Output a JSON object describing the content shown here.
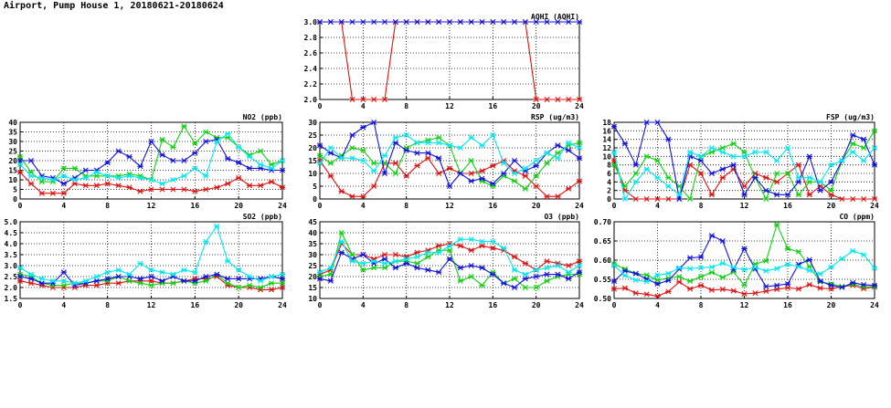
{
  "page": {
    "title": "Airport, Pump House 1, 20180621-20180624"
  },
  "colors": {
    "series1": "#e01010",
    "series2": "#10d010",
    "series3": "#1010e0",
    "series4": "#00e8f0",
    "grid": "#000000"
  },
  "chart_data": [
    {
      "id": "aqhi",
      "type": "line",
      "title": "AQHI (AQHI)",
      "xlim": [
        0,
        24
      ],
      "xticks": [
        0,
        4,
        8,
        12,
        16,
        20,
        24
      ],
      "ylim": [
        2.0,
        3.0
      ],
      "yticks": [
        "2.0",
        "2.2",
        "2.4",
        "2.6",
        "2.8",
        "3.0"
      ],
      "x": [
        0,
        1,
        2,
        3,
        4,
        5,
        6,
        7,
        8,
        9,
        10,
        11,
        12,
        13,
        14,
        15,
        16,
        17,
        18,
        19,
        20,
        21,
        22,
        23,
        24
      ],
      "series": [
        {
          "color": "series1",
          "values": [
            3,
            3,
            3,
            2,
            2,
            2,
            2,
            3,
            3,
            3,
            3,
            3,
            3,
            3,
            3,
            3,
            3,
            3,
            3,
            3,
            2,
            2,
            2,
            2,
            2
          ]
        },
        {
          "color": "series3",
          "values": [
            3,
            3,
            3,
            3,
            3,
            3,
            3,
            3,
            3,
            3,
            3,
            3,
            3,
            3,
            3,
            3,
            3,
            3,
            3,
            3,
            3,
            3,
            3,
            3,
            3
          ]
        }
      ]
    },
    {
      "id": "no2",
      "type": "line",
      "title": "NO2 (ppb)",
      "xlim": [
        0,
        24
      ],
      "xticks": [
        0,
        4,
        8,
        12,
        16,
        20,
        24
      ],
      "ylim": [
        0,
        40
      ],
      "yticks": [
        "0",
        "5",
        "10",
        "15",
        "20",
        "25",
        "30",
        "35",
        "40"
      ],
      "x": [
        0,
        1,
        2,
        3,
        4,
        5,
        6,
        7,
        8,
        9,
        10,
        11,
        12,
        13,
        14,
        15,
        16,
        17,
        18,
        19,
        20,
        21,
        22,
        23,
        24
      ],
      "series": [
        {
          "color": "series1",
          "values": [
            14,
            8,
            3,
            3,
            3,
            8,
            7,
            7,
            8,
            7,
            6,
            4,
            5,
            5,
            5,
            5,
            4,
            5,
            6,
            8,
            11,
            7,
            7,
            9,
            6
          ]
        },
        {
          "color": "series2",
          "values": [
            22,
            14,
            9,
            9,
            16,
            16,
            12,
            12,
            12,
            12,
            13,
            12,
            10,
            31,
            27,
            38,
            29,
            35,
            32,
            32,
            27,
            23,
            25,
            18,
            20
          ]
        },
        {
          "color": "series3",
          "values": [
            20,
            20,
            12,
            11,
            8,
            11,
            15,
            15,
            19,
            25,
            22,
            17,
            30,
            23,
            20,
            20,
            24,
            30,
            31,
            21,
            19,
            16,
            16,
            15,
            15
          ]
        },
        {
          "color": "series4",
          "values": [
            18,
            12,
            11,
            10,
            12,
            10,
            11,
            14,
            12,
            11,
            12,
            11,
            10,
            8,
            10,
            12,
            16,
            12,
            30,
            34,
            27,
            22,
            18,
            16,
            20
          ]
        }
      ]
    },
    {
      "id": "rsp",
      "type": "line",
      "title": "RSP (ug/m3)",
      "xlim": [
        0,
        24
      ],
      "xticks": [
        0,
        4,
        8,
        12,
        16,
        20,
        24
      ],
      "ylim": [
        0,
        30
      ],
      "yticks": [
        "0",
        "5",
        "10",
        "15",
        "20",
        "25",
        "30"
      ],
      "x": [
        0,
        1,
        2,
        3,
        4,
        5,
        6,
        7,
        8,
        9,
        10,
        11,
        12,
        13,
        14,
        15,
        16,
        17,
        18,
        19,
        20,
        21,
        22,
        23,
        24
      ],
      "series": [
        {
          "color": "series1",
          "values": [
            15,
            9,
            3,
            1,
            1,
            5,
            14,
            14,
            9,
            13,
            16,
            10,
            12,
            10,
            10,
            11,
            13,
            15,
            11,
            9,
            5,
            1,
            1,
            4,
            7
          ]
        },
        {
          "color": "series2",
          "values": [
            17,
            14,
            17,
            20,
            19,
            14,
            14,
            10,
            20,
            22,
            23,
            24,
            21,
            10,
            15,
            7,
            5,
            9,
            7,
            4,
            9,
            14,
            18,
            21,
            22
          ]
        },
        {
          "color": "series3",
          "values": [
            21,
            18,
            16,
            25,
            28,
            30,
            10,
            22,
            19,
            18,
            18,
            16,
            5,
            10,
            7,
            8,
            6,
            10,
            15,
            11,
            13,
            18,
            21,
            19,
            16
          ]
        },
        {
          "color": "series4",
          "values": [
            14,
            20,
            16,
            16,
            15,
            11,
            17,
            24,
            25,
            22,
            22,
            22,
            21,
            20,
            24,
            21,
            25,
            14,
            10,
            12,
            15,
            18,
            16,
            22,
            20
          ]
        }
      ]
    },
    {
      "id": "fsp",
      "type": "line",
      "title": "FSP (ug/m3)",
      "xlim": [
        0,
        24
      ],
      "xticks": [
        0,
        4,
        8,
        12,
        16,
        20,
        24
      ],
      "ylim": [
        0,
        18
      ],
      "yticks": [
        "0",
        "2",
        "4",
        "6",
        "8",
        "10",
        "12",
        "14",
        "16",
        "18"
      ],
      "x": [
        0,
        1,
        2,
        3,
        4,
        5,
        6,
        7,
        8,
        9,
        10,
        11,
        12,
        13,
        14,
        15,
        16,
        17,
        18,
        19,
        20,
        21,
        22,
        23,
        24
      ],
      "series": [
        {
          "color": "series1",
          "values": [
            9,
            2,
            0,
            0,
            0,
            0,
            0,
            8,
            6,
            1,
            5,
            7,
            3,
            6,
            5,
            4,
            6,
            8,
            1,
            3,
            1,
            0,
            0,
            0,
            0
          ]
        },
        {
          "color": "series2",
          "values": [
            8,
            3,
            6,
            10,
            9,
            5,
            3,
            0,
            10,
            11,
            12,
            13,
            11,
            5,
            0,
            6,
            6,
            1,
            4,
            4,
            2,
            9,
            13,
            12,
            16
          ]
        },
        {
          "color": "series3",
          "values": [
            17,
            13,
            8,
            18,
            18,
            14,
            0,
            10,
            9,
            6,
            7,
            8,
            1,
            5,
            2,
            1,
            1,
            4,
            10,
            2,
            4,
            9,
            15,
            14,
            8
          ]
        },
        {
          "color": "series4",
          "values": [
            11,
            0,
            4,
            7,
            5,
            3,
            1,
            11,
            10,
            12,
            11,
            10,
            10,
            11,
            11,
            9,
            12,
            5,
            5,
            4,
            8,
            9,
            11,
            9,
            12
          ]
        }
      ]
    },
    {
      "id": "so2",
      "type": "line",
      "title": "SO2 (ppb)",
      "xlim": [
        0,
        24
      ],
      "xticks": [
        0,
        4,
        8,
        12,
        16,
        20,
        24
      ],
      "ylim": [
        1.5,
        5.0
      ],
      "yticks": [
        "1.5",
        "2.0",
        "2.5",
        "3.0",
        "3.5",
        "4.0",
        "4.5",
        "5.0"
      ],
      "x": [
        0,
        1,
        2,
        3,
        4,
        5,
        6,
        7,
        8,
        9,
        10,
        11,
        12,
        13,
        14,
        15,
        16,
        17,
        18,
        19,
        20,
        21,
        22,
        23,
        24
      ],
      "series": [
        {
          "color": "series1",
          "values": [
            2.3,
            2.2,
            2.1,
            2.0,
            2.0,
            2.0,
            2.1,
            2.1,
            2.2,
            2.2,
            2.3,
            2.3,
            2.3,
            2.2,
            2.2,
            2.3,
            2.4,
            2.4,
            2.5,
            2.1,
            2.0,
            2.0,
            1.9,
            1.9,
            2.0
          ]
        },
        {
          "color": "series2",
          "values": [
            2.6,
            2.5,
            2.2,
            2.1,
            2.1,
            2.2,
            2.2,
            2.3,
            2.3,
            2.5,
            2.3,
            2.2,
            2.1,
            2.2,
            2.2,
            2.3,
            2.2,
            2.3,
            2.6,
            2.2,
            2.0,
            2.1,
            2.0,
            2.2,
            2.2
          ]
        },
        {
          "color": "series3",
          "values": [
            2.5,
            2.4,
            2.2,
            2.2,
            2.7,
            2.1,
            2.2,
            2.3,
            2.4,
            2.5,
            2.5,
            2.4,
            2.5,
            2.3,
            2.5,
            2.3,
            2.3,
            2.5,
            2.6,
            2.4,
            2.4,
            2.4,
            2.4,
            2.5,
            2.4
          ]
        },
        {
          "color": "series4",
          "values": [
            2.9,
            2.6,
            2.4,
            2.3,
            2.3,
            2.2,
            2.3,
            2.5,
            2.7,
            2.8,
            2.6,
            3.1,
            2.8,
            2.7,
            2.6,
            2.8,
            2.7,
            4.1,
            4.8,
            3.2,
            2.8,
            2.5,
            2.3,
            2.5,
            2.6
          ]
        }
      ]
    },
    {
      "id": "o3",
      "type": "line",
      "title": "O3 (ppb)",
      "xlim": [
        0,
        24
      ],
      "xticks": [
        0,
        4,
        8,
        12,
        16,
        20,
        24
      ],
      "ylim": [
        10,
        45
      ],
      "yticks": [
        "10",
        "15",
        "20",
        "25",
        "30",
        "35",
        "40",
        "45"
      ],
      "x": [
        0,
        1,
        2,
        3,
        4,
        5,
        6,
        7,
        8,
        9,
        10,
        11,
        12,
        13,
        14,
        15,
        16,
        17,
        18,
        19,
        20,
        21,
        22,
        23,
        24
      ],
      "series": [
        {
          "color": "series1",
          "values": [
            21,
            23,
            35,
            30,
            30,
            28,
            30,
            30,
            29,
            31,
            32,
            34,
            35,
            34,
            32,
            34,
            33,
            32,
            29,
            26,
            23,
            27,
            26,
            25,
            27
          ]
        },
        {
          "color": "series2",
          "values": [
            20,
            21,
            40,
            30,
            23,
            24,
            24,
            27,
            27,
            26,
            29,
            32,
            32,
            18,
            20,
            16,
            22,
            17,
            19,
            15,
            15,
            18,
            20,
            21,
            21
          ]
        },
        {
          "color": "series3",
          "values": [
            19,
            18,
            31,
            28,
            30,
            26,
            28,
            24,
            26,
            24,
            23,
            22,
            28,
            24,
            25,
            24,
            21,
            17,
            15,
            19,
            20,
            21,
            21,
            19,
            22
          ]
        },
        {
          "color": "series4",
          "values": [
            22,
            24,
            36,
            27,
            26,
            27,
            26,
            27,
            28,
            29,
            31,
            31,
            34,
            37,
            37,
            36,
            36,
            33,
            23,
            21,
            23,
            24,
            25,
            22,
            25
          ]
        }
      ]
    },
    {
      "id": "co",
      "type": "line",
      "title": "CO (ppm)",
      "xlim": [
        0,
        24
      ],
      "xticks": [
        0,
        4,
        8,
        12,
        16,
        20,
        24
      ],
      "ylim": [
        0.5,
        0.7
      ],
      "yticks": [
        "0.50",
        "0.55",
        "0.60",
        "0.65",
        "0.70"
      ],
      "x": [
        0,
        1,
        2,
        3,
        4,
        5,
        6,
        7,
        8,
        9,
        10,
        11,
        12,
        13,
        14,
        15,
        16,
        17,
        18,
        19,
        20,
        21,
        22,
        23,
        24
      ],
      "series": [
        {
          "color": "series1",
          "values": [
            0.525,
            0.527,
            0.514,
            0.511,
            0.506,
            0.518,
            0.543,
            0.525,
            0.534,
            0.522,
            0.524,
            0.52,
            0.512,
            0.514,
            0.519,
            0.524,
            0.528,
            0.525,
            0.536,
            0.527,
            0.525,
            0.531,
            0.534,
            0.526,
            0.53
          ]
        },
        {
          "color": "series2",
          "values": [
            0.59,
            0.577,
            0.565,
            0.561,
            0.548,
            0.553,
            0.557,
            0.545,
            0.557,
            0.568,
            0.555,
            0.569,
            0.535,
            0.59,
            0.598,
            0.693,
            0.63,
            0.622,
            0.583,
            0.543,
            0.538,
            0.531,
            0.537,
            0.531,
            0.531
          ]
        },
        {
          "color": "series3",
          "values": [
            0.545,
            0.572,
            0.565,
            0.551,
            0.538,
            0.547,
            0.577,
            0.606,
            0.608,
            0.664,
            0.65,
            0.575,
            0.63,
            0.577,
            0.531,
            0.534,
            0.538,
            0.589,
            0.601,
            0.545,
            0.534,
            0.529,
            0.541,
            0.536,
            0.534
          ]
        },
        {
          "color": "series4",
          "values": [
            0.586,
            0.56,
            0.548,
            0.544,
            0.561,
            0.565,
            0.58,
            0.578,
            0.58,
            0.582,
            0.592,
            0.581,
            0.575,
            0.581,
            0.572,
            0.578,
            0.589,
            0.583,
            0.573,
            0.564,
            0.582,
            0.604,
            0.624,
            0.614,
            0.579
          ]
        }
      ]
    }
  ]
}
